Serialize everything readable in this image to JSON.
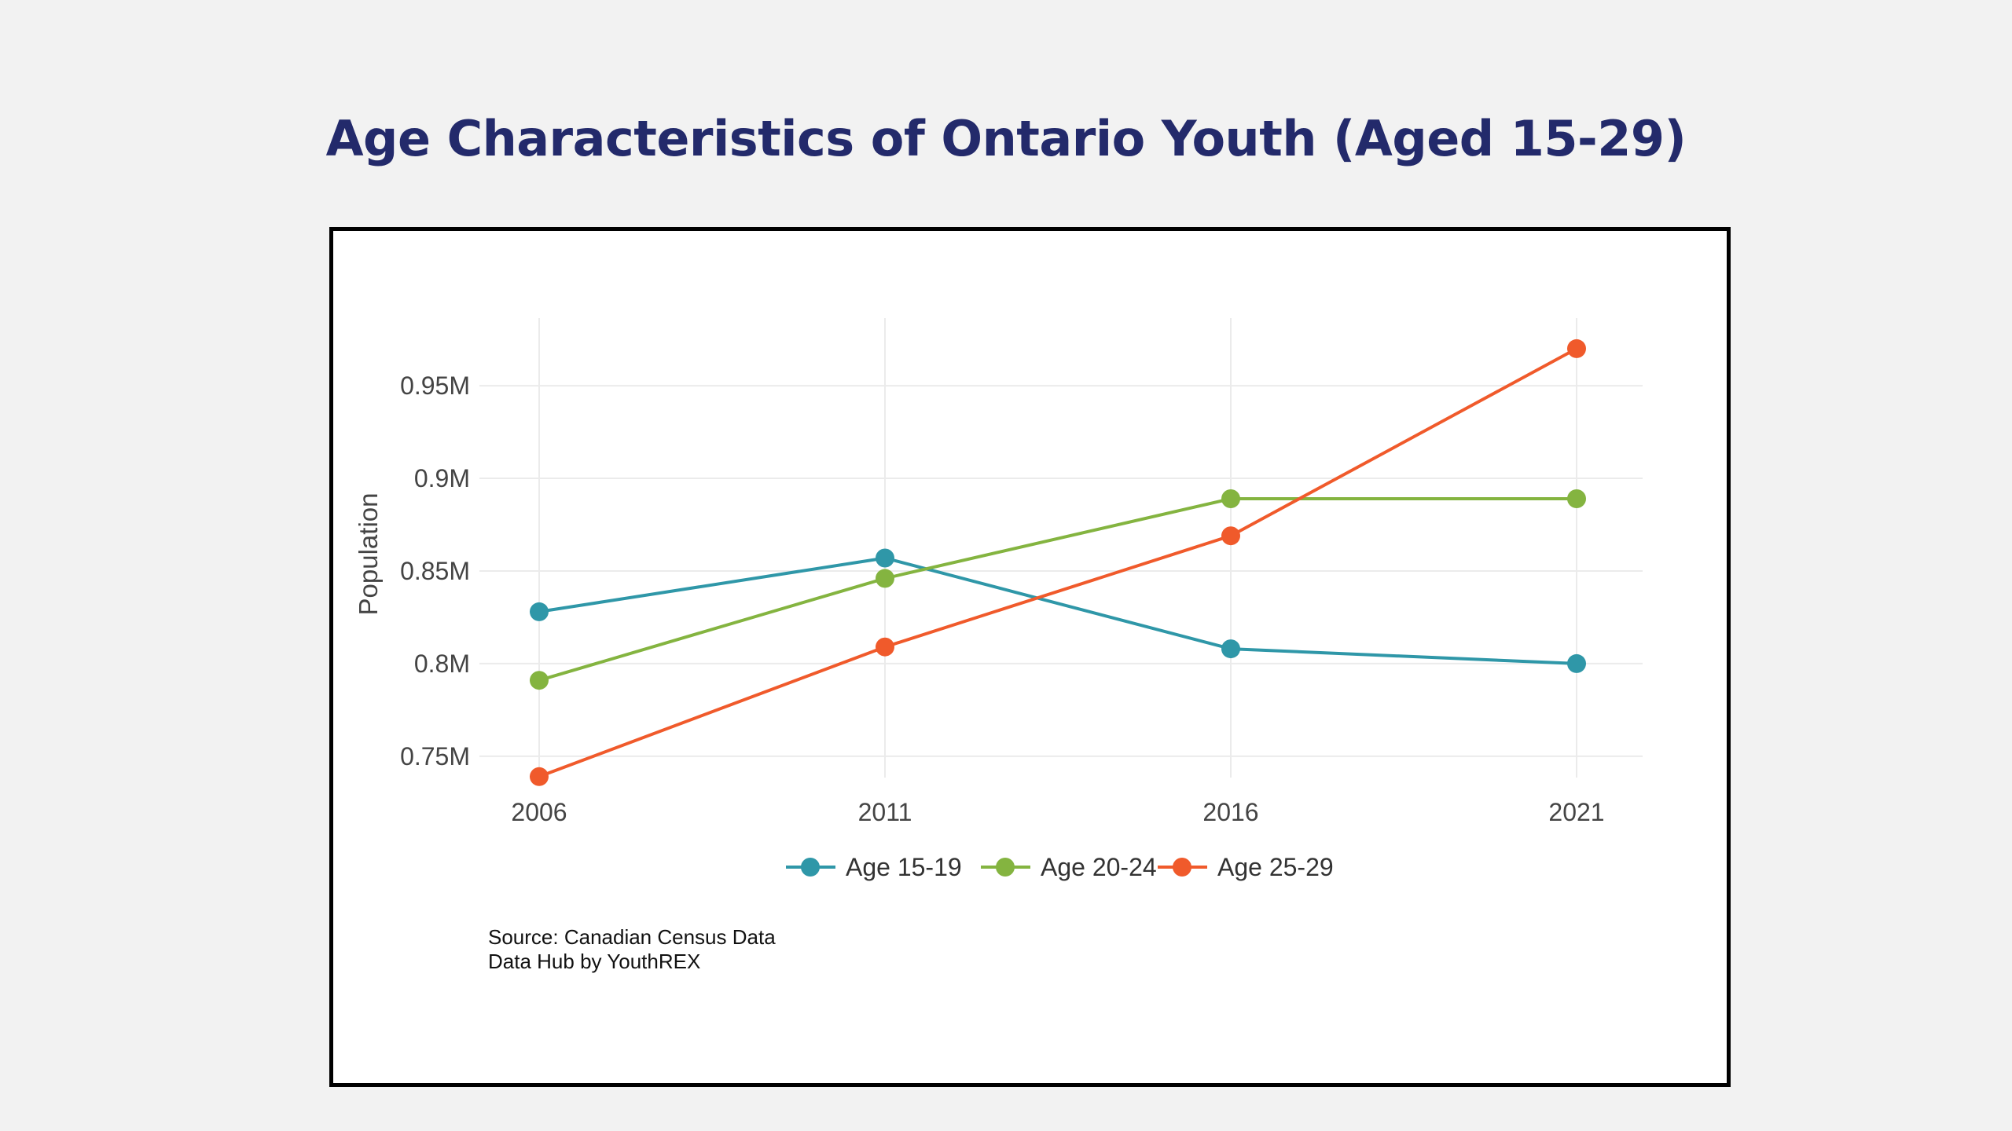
{
  "title": "Age Characteristics of Ontario Youth (Aged 15-29)",
  "source": {
    "line1": "Source: Canadian Census Data",
    "line2": "Data Hub by YouthREX"
  },
  "colors": {
    "title": "#232a6b",
    "age_15_19": "#2f97a8",
    "age_20_24": "#84b440",
    "age_25_29": "#f05a2b"
  },
  "chart_data": {
    "type": "line",
    "title": "",
    "xlabel": "",
    "ylabel": "Population",
    "x": [
      "2006",
      "2011",
      "2016",
      "2021"
    ],
    "yticks": [
      0.75,
      0.8,
      0.85,
      0.9,
      0.95
    ],
    "ytick_labels": [
      "0.75M",
      "0.8M",
      "0.85M",
      "0.9M",
      "0.95M"
    ],
    "ylim": [
      0.7385,
      0.9865
    ],
    "grid": true,
    "legend_position": "bottom-center",
    "series": [
      {
        "name": "Age 15-19",
        "color": "#2f97a8",
        "values": [
          0.828,
          0.857,
          0.808,
          0.8
        ]
      },
      {
        "name": "Age 20-24",
        "color": "#84b440",
        "values": [
          0.791,
          0.846,
          0.889,
          0.889
        ]
      },
      {
        "name": "Age 25-29",
        "color": "#f05a2b",
        "values": [
          0.739,
          0.809,
          0.869,
          0.97
        ]
      }
    ]
  }
}
